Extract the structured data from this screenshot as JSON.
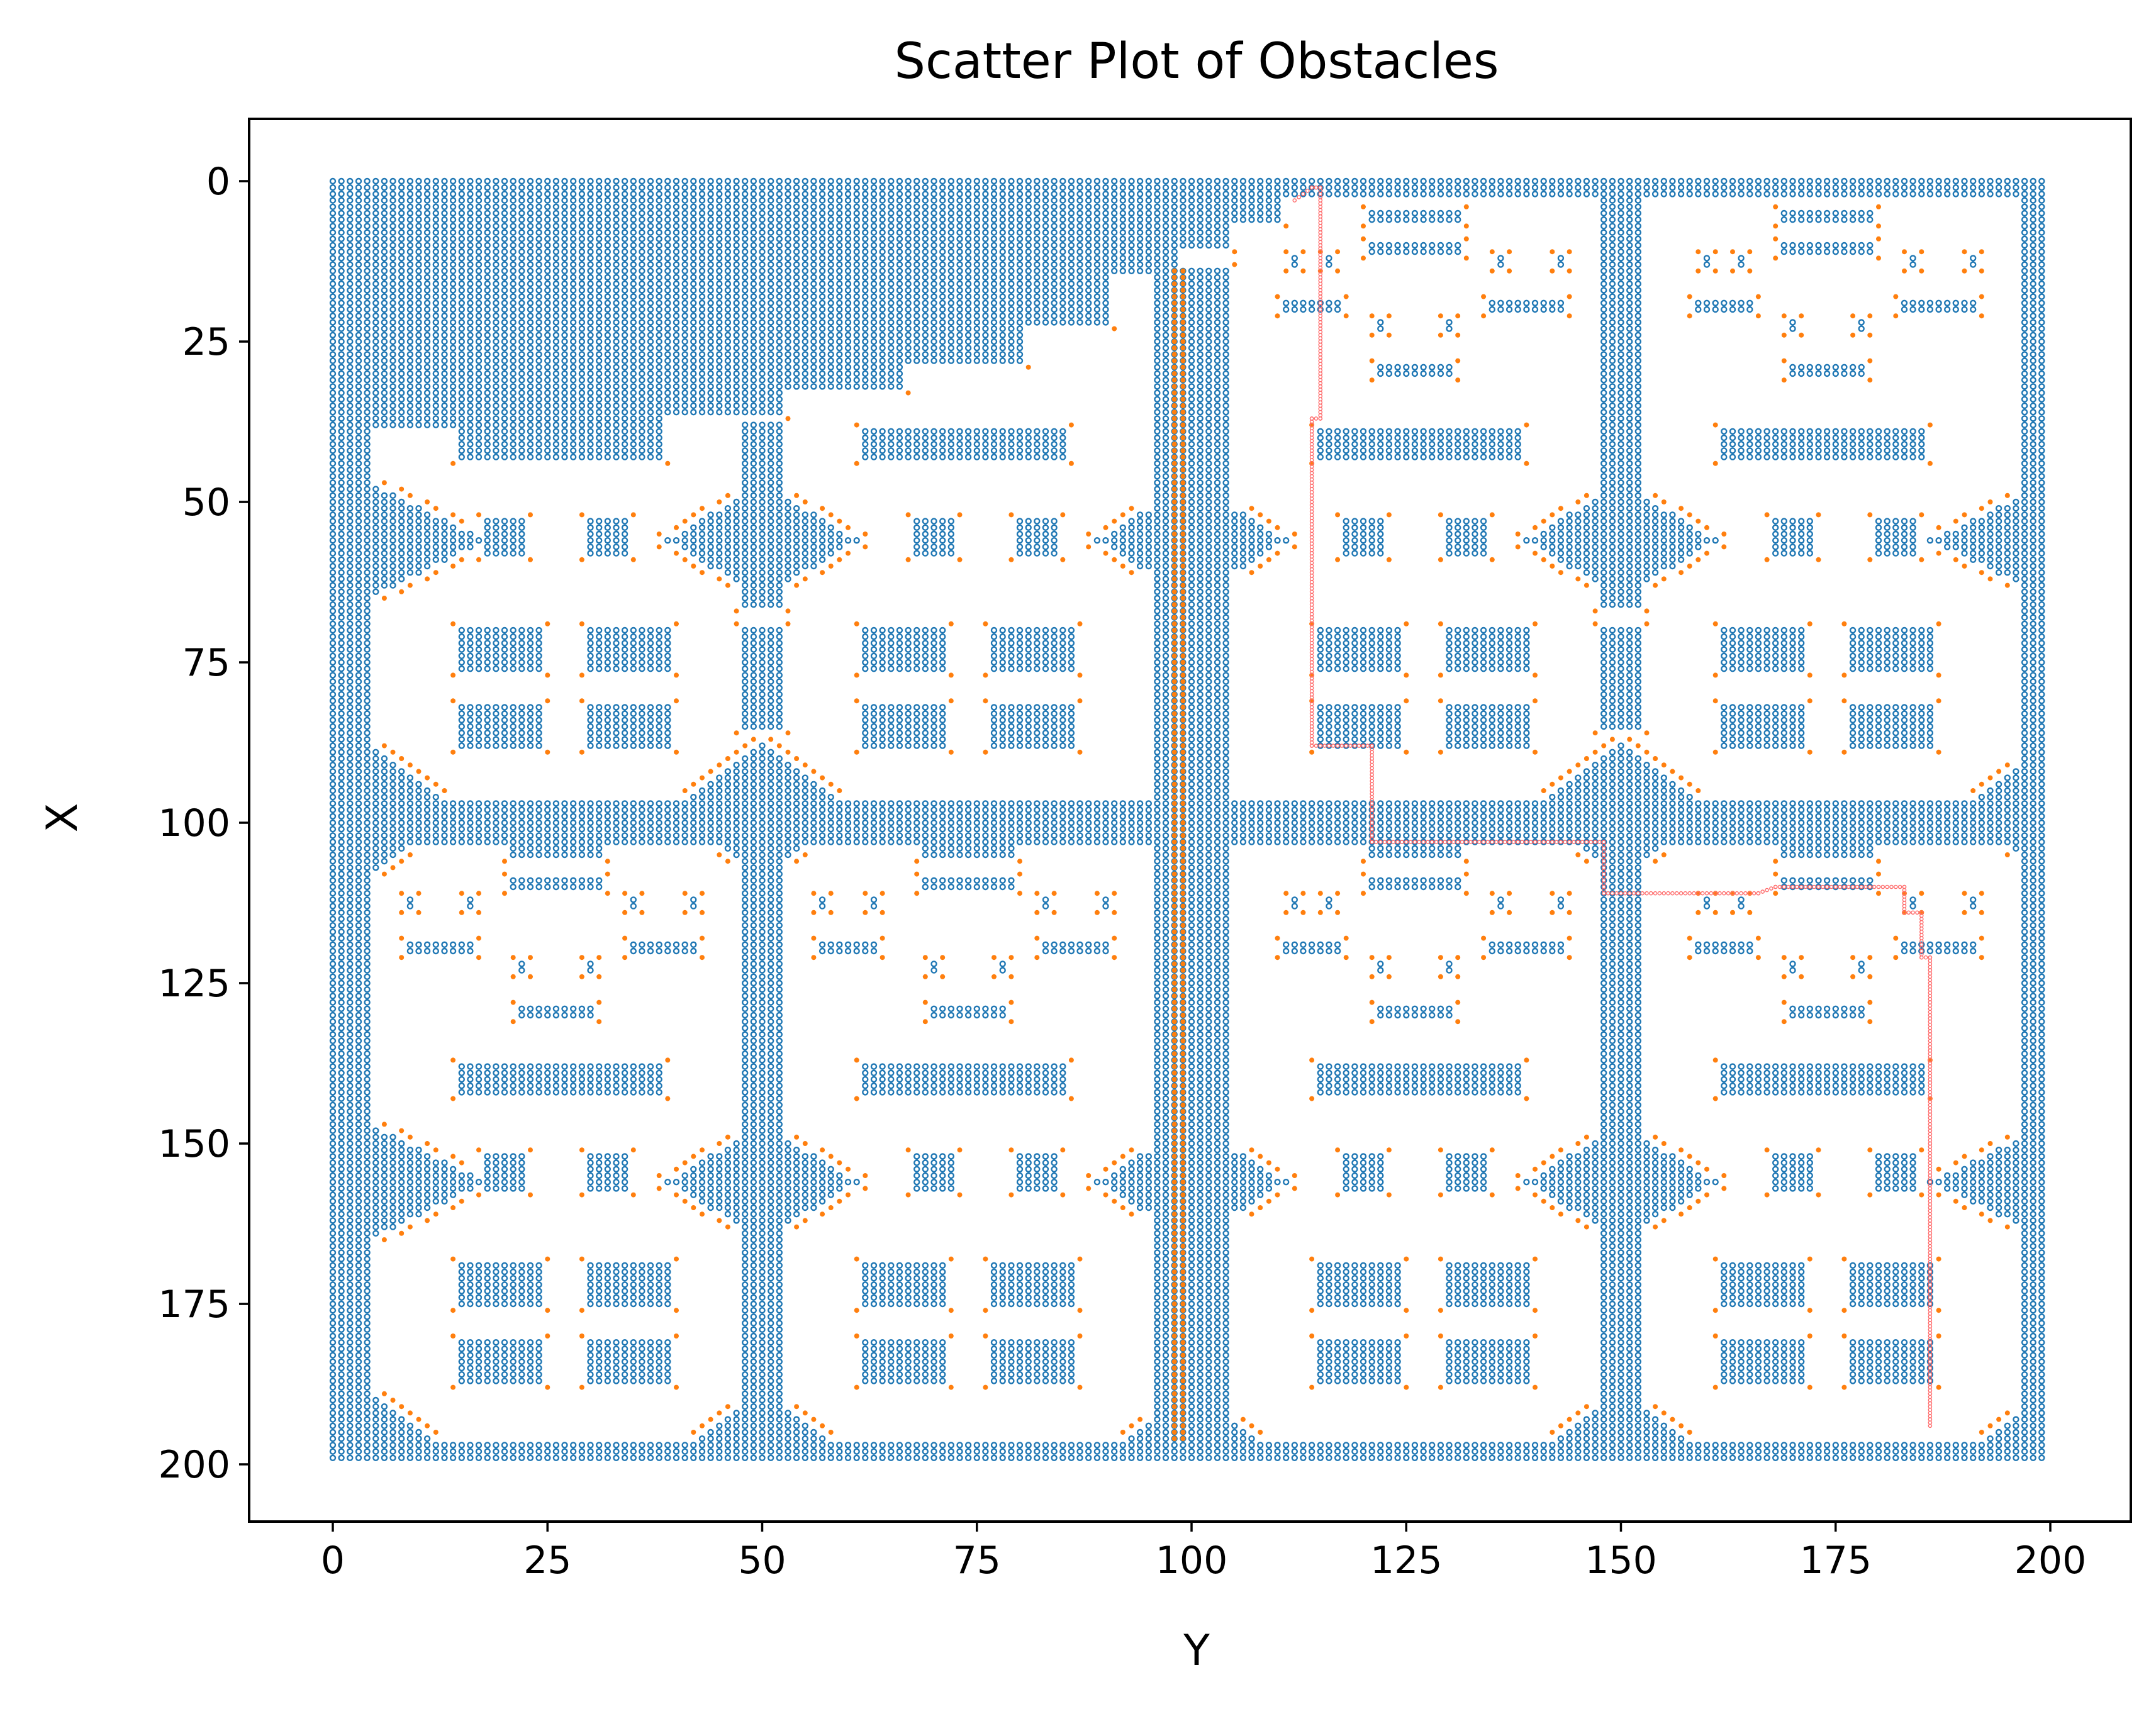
{
  "chart_data": {
    "type": "scatter",
    "title": "Scatter Plot of Obstacles",
    "xlabel": "Y",
    "ylabel": "X",
    "xlim": [
      -10,
      209
    ],
    "ylim": [
      209,
      -10
    ],
    "y_inverted": true,
    "xticks": [
      0,
      25,
      50,
      75,
      100,
      125,
      150,
      175,
      200
    ],
    "yticks": [
      0,
      25,
      50,
      75,
      100,
      125,
      150,
      175,
      200
    ],
    "grid": false,
    "legend": null,
    "grid_resolution": 1,
    "series": [
      {
        "kind": "obstacles",
        "color": "#1f77b4",
        "marker": "small open circle",
        "rects": [
          [
            0,
            0,
            199,
            2
          ],
          [
            0,
            197,
            199,
            199
          ],
          [
            0,
            0,
            2,
            199
          ],
          [
            197,
            0,
            199,
            199
          ],
          [
            0,
            3,
            4,
            199
          ],
          [
            4,
            3,
            38,
            38
          ],
          [
            38,
            3,
            52,
            36
          ],
          [
            52,
            3,
            66,
            32
          ],
          [
            66,
            3,
            80,
            28
          ],
          [
            80,
            3,
            90,
            22
          ],
          [
            90,
            3,
            98,
            14
          ],
          [
            98,
            3,
            104,
            10
          ],
          [
            104,
            3,
            110,
            6
          ],
          [
            96,
            14,
            104,
            199
          ],
          [
            3,
            97,
            197,
            103
          ],
          [
            148,
            3,
            152,
            66
          ],
          [
            148,
            70,
            152,
            85
          ],
          [
            148,
            90,
            152,
            199
          ],
          [
            48,
            38,
            52,
            66
          ],
          [
            48,
            70,
            52,
            85
          ],
          [
            48,
            90,
            52,
            199
          ],
          [
            15,
            39,
            38,
            43
          ],
          [
            62,
            39,
            85,
            43
          ],
          [
            115,
            39,
            138,
            43
          ],
          [
            162,
            39,
            185,
            43
          ],
          [
            15,
            138,
            38,
            142
          ],
          [
            62,
            138,
            85,
            142
          ],
          [
            115,
            138,
            138,
            142
          ],
          [
            162,
            138,
            185,
            142
          ],
          [
            18,
            53,
            22,
            58
          ],
          [
            30,
            53,
            34,
            58
          ],
          [
            68,
            53,
            72,
            58
          ],
          [
            80,
            53,
            84,
            58
          ],
          [
            118,
            53,
            122,
            58
          ],
          [
            130,
            53,
            134,
            58
          ],
          [
            168,
            53,
            172,
            58
          ],
          [
            180,
            53,
            184,
            58
          ],
          [
            18,
            152,
            22,
            157
          ],
          [
            30,
            152,
            34,
            157
          ],
          [
            68,
            152,
            72,
            157
          ],
          [
            80,
            152,
            84,
            157
          ],
          [
            118,
            152,
            122,
            157
          ],
          [
            130,
            152,
            134,
            157
          ],
          [
            168,
            152,
            172,
            157
          ],
          [
            180,
            152,
            184,
            157
          ],
          [
            15,
            70,
            24,
            76
          ],
          [
            30,
            70,
            39,
            76
          ],
          [
            62,
            70,
            71,
            76
          ],
          [
            77,
            70,
            86,
            76
          ],
          [
            115,
            70,
            124,
            76
          ],
          [
            130,
            70,
            139,
            76
          ],
          [
            162,
            70,
            171,
            76
          ],
          [
            177,
            70,
            186,
            76
          ],
          [
            15,
            82,
            24,
            88
          ],
          [
            30,
            82,
            39,
            88
          ],
          [
            62,
            82,
            71,
            88
          ],
          [
            77,
            82,
            86,
            88
          ],
          [
            115,
            82,
            124,
            88
          ],
          [
            130,
            82,
            139,
            88
          ],
          [
            162,
            82,
            171,
            88
          ],
          [
            177,
            82,
            186,
            88
          ],
          [
            15,
            169,
            24,
            175
          ],
          [
            30,
            169,
            39,
            175
          ],
          [
            62,
            169,
            71,
            175
          ],
          [
            77,
            169,
            86,
            175
          ],
          [
            115,
            169,
            124,
            175
          ],
          [
            130,
            169,
            139,
            175
          ],
          [
            162,
            169,
            171,
            175
          ],
          [
            177,
            169,
            186,
            175
          ],
          [
            15,
            181,
            24,
            187
          ],
          [
            30,
            181,
            39,
            187
          ],
          [
            62,
            181,
            71,
            187
          ],
          [
            77,
            181,
            86,
            187
          ],
          [
            115,
            181,
            124,
            187
          ],
          [
            130,
            181,
            139,
            187
          ],
          [
            162,
            181,
            171,
            187
          ],
          [
            177,
            181,
            186,
            187
          ],
          [
            121,
            5,
            131,
            6
          ],
          [
            121,
            10,
            131,
            11
          ],
          [
            169,
            5,
            179,
            6
          ],
          [
            169,
            10,
            179,
            11
          ],
          [
            21,
            104,
            31,
            105
          ],
          [
            21,
            109,
            31,
            110
          ],
          [
            69,
            104,
            79,
            105
          ],
          [
            69,
            109,
            79,
            110
          ],
          [
            121,
            104,
            131,
            105
          ],
          [
            121,
            109,
            131,
            110
          ],
          [
            169,
            104,
            179,
            105
          ],
          [
            169,
            109,
            179,
            110
          ],
          [
            112,
            12,
            112,
            13
          ],
          [
            116,
            12,
            116,
            13
          ],
          [
            136,
            12,
            136,
            13
          ],
          [
            143,
            12,
            143,
            13
          ],
          [
            160,
            12,
            160,
            13
          ],
          [
            164,
            12,
            164,
            13
          ],
          [
            184,
            12,
            184,
            13
          ],
          [
            191,
            12,
            191,
            13
          ],
          [
            9,
            112,
            9,
            113
          ],
          [
            16,
            112,
            16,
            113
          ],
          [
            35,
            112,
            35,
            113
          ],
          [
            42,
            112,
            42,
            113
          ],
          [
            57,
            112,
            57,
            113
          ],
          [
            63,
            112,
            63,
            113
          ],
          [
            83,
            112,
            83,
            113
          ],
          [
            90,
            112,
            90,
            113
          ],
          [
            112,
            112,
            112,
            113
          ],
          [
            116,
            112,
            116,
            113
          ],
          [
            136,
            112,
            136,
            113
          ],
          [
            143,
            112,
            143,
            113
          ],
          [
            160,
            112,
            160,
            113
          ],
          [
            164,
            112,
            164,
            113
          ],
          [
            184,
            112,
            184,
            113
          ],
          [
            191,
            112,
            191,
            113
          ],
          [
            111,
            19,
            117,
            20
          ],
          [
            135,
            19,
            143,
            20
          ],
          [
            159,
            19,
            165,
            20
          ],
          [
            183,
            19,
            191,
            20
          ],
          [
            9,
            119,
            16,
            120
          ],
          [
            35,
            119,
            42,
            120
          ],
          [
            57,
            119,
            63,
            120
          ],
          [
            83,
            119,
            90,
            120
          ],
          [
            111,
            119,
            117,
            120
          ],
          [
            135,
            119,
            143,
            120
          ],
          [
            159,
            119,
            165,
            120
          ],
          [
            183,
            119,
            191,
            120
          ],
          [
            122,
            22,
            122,
            23
          ],
          [
            130,
            22,
            130,
            23
          ],
          [
            170,
            22,
            170,
            23
          ],
          [
            178,
            22,
            178,
            23
          ],
          [
            22,
            122,
            22,
            123
          ],
          [
            30,
            122,
            30,
            123
          ],
          [
            70,
            122,
            70,
            123
          ],
          [
            78,
            122,
            78,
            123
          ],
          [
            122,
            122,
            122,
            123
          ],
          [
            130,
            122,
            130,
            123
          ],
          [
            170,
            122,
            170,
            123
          ],
          [
            178,
            122,
            178,
            123
          ],
          [
            122,
            29,
            130,
            30
          ],
          [
            170,
            29,
            178,
            30
          ],
          [
            22,
            129,
            30,
            130
          ],
          [
            70,
            129,
            78,
            130
          ],
          [
            122,
            129,
            130,
            130
          ],
          [
            170,
            129,
            178,
            130
          ]
        ],
        "diamonds": [
          [
            50,
            56,
            11,
            9
          ],
          [
            100,
            56,
            11,
            9
          ],
          [
            150,
            56,
            11,
            9
          ],
          [
            50,
            156,
            11,
            9
          ],
          [
            100,
            156,
            11,
            9
          ],
          [
            150,
            156,
            11,
            9
          ],
          [
            50,
            98,
            10,
            10
          ],
          [
            150,
            98,
            10,
            10
          ],
          [
            50,
            198,
            10,
            9
          ],
          [
            100,
            198,
            10,
            9
          ],
          [
            150,
            198,
            10,
            9
          ],
          [
            4,
            56,
            14,
            9,
            "right"
          ],
          [
            200,
            56,
            14,
            9,
            "left"
          ],
          [
            4,
            156,
            14,
            9,
            "right"
          ],
          [
            200,
            156,
            14,
            9,
            "left"
          ],
          [
            4,
            98,
            10,
            10,
            "right"
          ],
          [
            200,
            98,
            10,
            10,
            "left"
          ],
          [
            4,
            198,
            10,
            9,
            "right"
          ],
          [
            200,
            198,
            10,
            9,
            "left"
          ]
        ]
      },
      {
        "kind": "obstacle_border",
        "color": "#ff7f0e",
        "marker": "small dot"
      },
      {
        "kind": "path",
        "color": "#ff6b6b",
        "marker": "tiny open circle",
        "waypoints": [
          [
            112,
            3
          ],
          [
            114,
            1
          ],
          [
            115,
            1
          ],
          [
            115,
            37
          ],
          [
            114,
            37
          ],
          [
            114,
            88
          ],
          [
            121,
            88
          ],
          [
            121,
            103
          ],
          [
            148,
            103
          ],
          [
            148,
            111
          ],
          [
            166,
            111
          ],
          [
            168,
            110
          ],
          [
            183,
            110
          ],
          [
            183,
            114
          ],
          [
            185,
            114
          ],
          [
            185,
            121
          ],
          [
            186,
            121
          ],
          [
            186,
            194
          ]
        ]
      }
    ]
  }
}
